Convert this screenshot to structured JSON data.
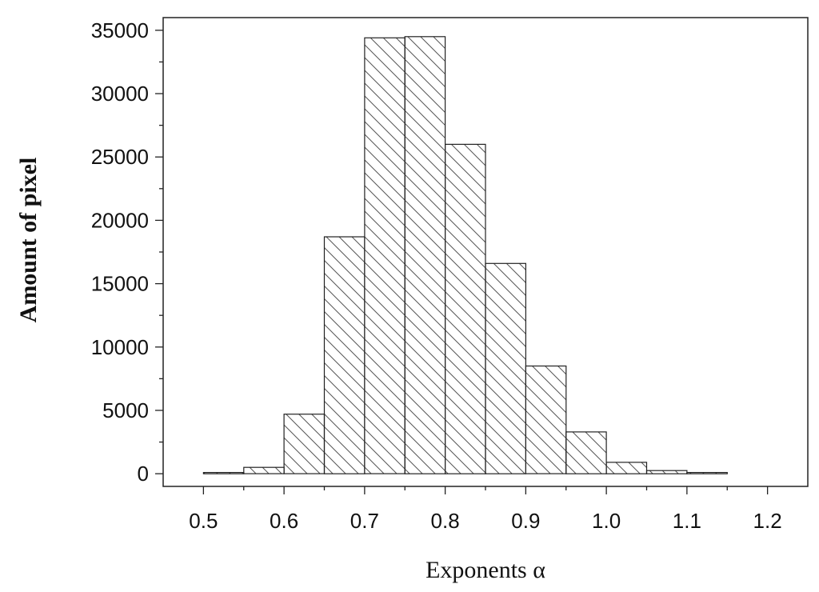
{
  "chart_data": {
    "type": "bar",
    "title": "",
    "xlabel": "Exponents α",
    "ylabel": "Amount of pixel",
    "bin_width": 0.05,
    "bins": [
      {
        "x0": 0.5,
        "x1": 0.55,
        "value": 100
      },
      {
        "x0": 0.55,
        "x1": 0.6,
        "value": 500
      },
      {
        "x0": 0.6,
        "x1": 0.65,
        "value": 4700
      },
      {
        "x0": 0.65,
        "x1": 0.7,
        "value": 18700
      },
      {
        "x0": 0.7,
        "x1": 0.75,
        "value": 34400
      },
      {
        "x0": 0.75,
        "x1": 0.8,
        "value": 34500
      },
      {
        "x0": 0.8,
        "x1": 0.85,
        "value": 26000
      },
      {
        "x0": 0.85,
        "x1": 0.9,
        "value": 16600
      },
      {
        "x0": 0.9,
        "x1": 0.95,
        "value": 8500
      },
      {
        "x0": 0.95,
        "x1": 1.0,
        "value": 3300
      },
      {
        "x0": 1.0,
        "x1": 1.05,
        "value": 900
      },
      {
        "x0": 1.05,
        "x1": 1.1,
        "value": 250
      },
      {
        "x0": 1.1,
        "x1": 1.15,
        "value": 100
      },
      {
        "x0": 1.15,
        "x1": 1.2,
        "value": 0
      }
    ],
    "xlim": [
      0.45,
      1.25
    ],
    "ylim": [
      -1000,
      36000
    ],
    "xticks": [
      "0.5",
      "0.6",
      "0.7",
      "0.8",
      "0.9",
      "1.0",
      "1.1",
      "1.2"
    ],
    "yticks": [
      "0",
      "5000",
      "10000",
      "15000",
      "20000",
      "25000",
      "30000",
      "35000"
    ],
    "fill_pattern": "diagonal-hatch",
    "bar_stroke": "#222222",
    "bar_fill": "#ffffff",
    "grid": false,
    "legend": "none"
  }
}
